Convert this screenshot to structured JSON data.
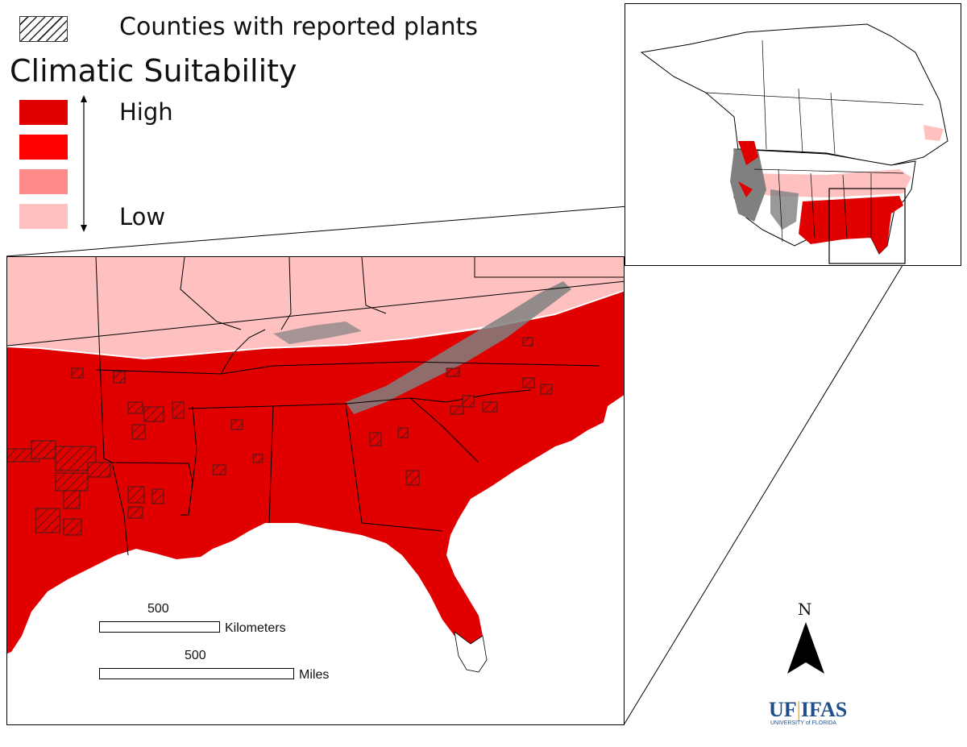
{
  "legend": {
    "hatch_label": "Counties with reported plants",
    "title": "Climatic Suitability",
    "high_label": "High",
    "low_label": "Low",
    "levels": [
      {
        "color": "#e00000"
      },
      {
        "color": "#ff0000"
      },
      {
        "color": "#ff8a8a"
      },
      {
        "color": "#ffc0c0"
      }
    ]
  },
  "scale": {
    "km_value": "500",
    "km_unit": "Kilometers",
    "mi_value": "500",
    "mi_unit": "Miles"
  },
  "north": {
    "letter": "N"
  },
  "logo": {
    "main_left": "UF",
    "main_right": "IFAS",
    "sub": "UNIVERSITY of FLORIDA"
  },
  "colors": {
    "suitable_high": "#e00000",
    "suitable_low": "#ffc0c0",
    "unsuitable_gray": "#808080",
    "background": "#ffffff"
  },
  "icons": [
    "north-arrow-icon",
    "double-arrow-icon",
    "hatch-pattern-icon"
  ]
}
